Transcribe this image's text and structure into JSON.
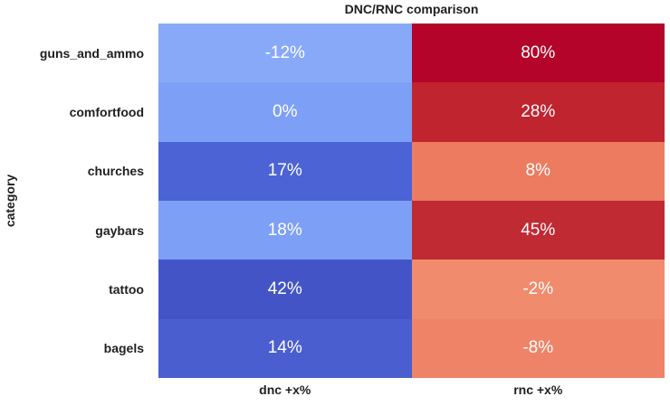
{
  "chart_data": {
    "type": "heatmap",
    "title": "DNC/RNC comparison",
    "ylabel": "category",
    "xlabel": "",
    "x_tick_labels": [
      "dnc +x%",
      "rnc +x%"
    ],
    "y_tick_labels": [
      "guns_and_ammo",
      "comfortfood",
      "churches",
      "gaybars",
      "tattoo",
      "bagels"
    ],
    "series": [
      {
        "name": "dnc +x%",
        "values": [
          -12,
          0,
          17,
          18,
          42,
          14
        ]
      },
      {
        "name": "rnc +x%",
        "values": [
          80,
          28,
          8,
          45,
          -2,
          -8
        ]
      }
    ],
    "cell_labels": [
      [
        "-12%",
        "80%"
      ],
      [
        "0%",
        "28%"
      ],
      [
        "17%",
        "8%"
      ],
      [
        "18%",
        "45%"
      ],
      [
        "42%",
        "-2%"
      ],
      [
        "14%",
        "-8%"
      ]
    ],
    "cell_colors": [
      [
        "#87a9f8",
        "#b40429"
      ],
      [
        "#7da0f6",
        "#c0242f"
      ],
      [
        "#4b63d4",
        "#ec7b60"
      ],
      [
        "#7da0f6",
        "#c02a33"
      ],
      [
        "#4355c6",
        "#f08b6d"
      ],
      [
        "#4a5ed0",
        "#ee8367"
      ]
    ],
    "value_text_color": "#ffffff",
    "label_text_color": "#212121",
    "colormap": "coolwarm",
    "legend_position": "none",
    "grid": false
  }
}
